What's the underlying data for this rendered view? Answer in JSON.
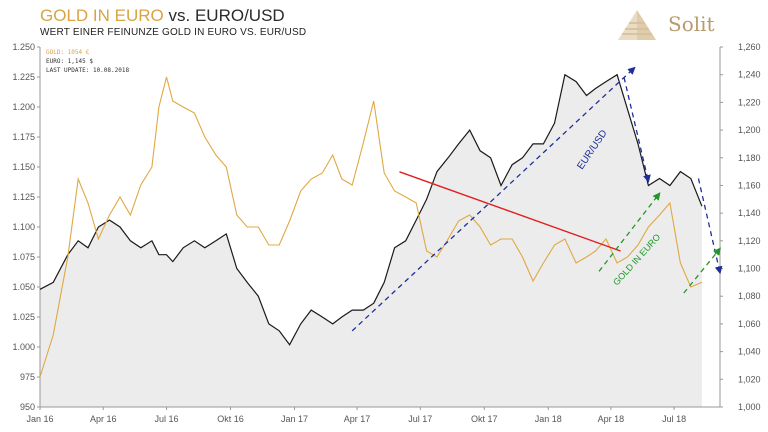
{
  "header": {
    "title_gold": "GOLD IN EURO",
    "title_vs": "vs.",
    "title_dark": "EURO/USD",
    "subtitle": "WERT EINER FEINUNZE GOLD IN EURO VS. EUR/USD"
  },
  "logo": {
    "text": "Solit"
  },
  "legend": {
    "gold_line": "GOLD: 1054 €",
    "euro_line": "EURO: 1,145 $",
    "update_line": "LAST UPDATE: 10.08.2018"
  },
  "colors": {
    "gold": "#e0a843",
    "euro": "#1a1a1a",
    "area": "#ececec",
    "blue_trend": "#1f2f9a",
    "red_trend": "#e02020",
    "green_trend": "#22962a"
  },
  "chart_data": {
    "type": "line",
    "x": [
      "2016-01-01",
      "2016-01-20",
      "2016-02-10",
      "2016-02-25",
      "2016-03-10",
      "2016-03-25",
      "2016-04-10",
      "2016-04-25",
      "2016-05-10",
      "2016-05-25",
      "2016-06-10",
      "2016-06-20",
      "2016-07-01",
      "2016-07-10",
      "2016-07-25",
      "2016-08-10",
      "2016-08-25",
      "2016-09-10",
      "2016-09-25",
      "2016-10-10",
      "2016-10-25",
      "2016-11-10",
      "2016-11-25",
      "2016-12-10",
      "2016-12-25",
      "2017-01-10",
      "2017-01-25",
      "2017-02-10",
      "2017-02-25",
      "2017-03-10",
      "2017-03-25",
      "2017-04-10",
      "2017-04-25",
      "2017-05-10",
      "2017-05-25",
      "2017-06-10",
      "2017-06-25",
      "2017-07-10",
      "2017-07-25",
      "2017-08-10",
      "2017-08-25",
      "2017-09-10",
      "2017-09-25",
      "2017-10-10",
      "2017-10-25",
      "2017-11-10",
      "2017-11-25",
      "2017-12-10",
      "2017-12-25",
      "2018-01-10",
      "2018-01-25",
      "2018-02-10",
      "2018-02-25",
      "2018-03-10",
      "2018-03-25",
      "2018-04-10",
      "2018-04-25",
      "2018-05-10",
      "2018-05-25",
      "2018-06-10",
      "2018-06-25",
      "2018-07-10",
      "2018-07-25",
      "2018-08-10"
    ],
    "series": [
      {
        "name": "GOLD",
        "axis": "left",
        "values": [
          975,
          1010,
          1075,
          1140,
          1120,
          1090,
          1110,
          1125,
          1110,
          1135,
          1150,
          1200,
          1225,
          1205,
          1200,
          1195,
          1175,
          1160,
          1150,
          1110,
          1100,
          1100,
          1085,
          1085,
          1105,
          1130,
          1140,
          1145,
          1160,
          1140,
          1135,
          1170,
          1205,
          1145,
          1130,
          1125,
          1120,
          1080,
          1075,
          1090,
          1105,
          1110,
          1100,
          1085,
          1090,
          1090,
          1075,
          1055,
          1070,
          1085,
          1090,
          1070,
          1075,
          1080,
          1090,
          1070,
          1075,
          1085,
          1100,
          1110,
          1120,
          1070,
          1050,
          1054
        ]
      },
      {
        "name": "EURO",
        "axis": "right",
        "values": [
          1.085,
          1.09,
          1.11,
          1.12,
          1.115,
          1.13,
          1.135,
          1.13,
          1.12,
          1.115,
          1.12,
          1.11,
          1.11,
          1.105,
          1.115,
          1.12,
          1.115,
          1.12,
          1.125,
          1.1,
          1.09,
          1.08,
          1.06,
          1.055,
          1.045,
          1.06,
          1.07,
          1.065,
          1.06,
          1.065,
          1.07,
          1.07,
          1.075,
          1.09,
          1.115,
          1.12,
          1.135,
          1.15,
          1.17,
          1.18,
          1.19,
          1.2,
          1.185,
          1.18,
          1.16,
          1.175,
          1.18,
          1.19,
          1.19,
          1.205,
          1.24,
          1.235,
          1.225,
          1.23,
          1.235,
          1.24,
          1.215,
          1.19,
          1.16,
          1.165,
          1.16,
          1.17,
          1.165,
          1.145
        ]
      }
    ],
    "y_left": {
      "ticks": [
        "950",
        "975",
        "1.000",
        "1.025",
        "1.050",
        "1.075",
        "1.100",
        "1.125",
        "1.150",
        "1.175",
        "1.200",
        "1.225",
        "1.250"
      ],
      "ylim": [
        950,
        1250
      ]
    },
    "y_right": {
      "ticks": [
        "1,000",
        "1,020",
        "1,040",
        "1,060",
        "1,080",
        "1,100",
        "1,120",
        "1,140",
        "1,160",
        "1,180",
        "1,200",
        "1,220",
        "1,240",
        "1,260"
      ],
      "ylim": [
        1.0,
        1.26
      ]
    },
    "x_ticks": [
      "Jan 16",
      "Apr 16",
      "Jul 16",
      "Okt 16",
      "Jan 17",
      "Apr 17",
      "Jul 17",
      "Okt 17",
      "Jan 18",
      "Apr 18",
      "Jul 18"
    ],
    "annotations": [
      {
        "text": "EUR/USD",
        "color": "blue"
      },
      {
        "text": "GOLD IN EURO",
        "color": "green"
      }
    ],
    "trendlines": [
      {
        "kind": "dashed",
        "color": "blue",
        "axis": "right",
        "from": [
          "2017-03-25",
          1.055
        ],
        "to": [
          "2018-05-05",
          1.245
        ]
      },
      {
        "kind": "dashed",
        "color": "blue",
        "axis": "right",
        "from": [
          "2018-04-20",
          1.238
        ],
        "to": [
          "2018-05-25",
          1.163
        ]
      },
      {
        "kind": "dashed",
        "color": "blue",
        "axis": "right",
        "from": [
          "2018-08-05",
          1.165
        ],
        "to": [
          "2018-09-05",
          1.097
        ]
      },
      {
        "kind": "solid",
        "color": "red",
        "axis": "left",
        "from": [
          "2017-06-01",
          1146
        ],
        "to": [
          "2018-04-15",
          1080
        ]
      },
      {
        "kind": "dashed",
        "color": "green",
        "axis": "left",
        "from": [
          "2018-03-15",
          1063
        ],
        "to": [
          "2018-06-10",
          1128
        ]
      },
      {
        "kind": "dashed",
        "color": "green",
        "axis": "left",
        "from": [
          "2018-07-15",
          1045
        ],
        "to": [
          "2018-09-05",
          1082
        ]
      }
    ],
    "grid": false
  }
}
